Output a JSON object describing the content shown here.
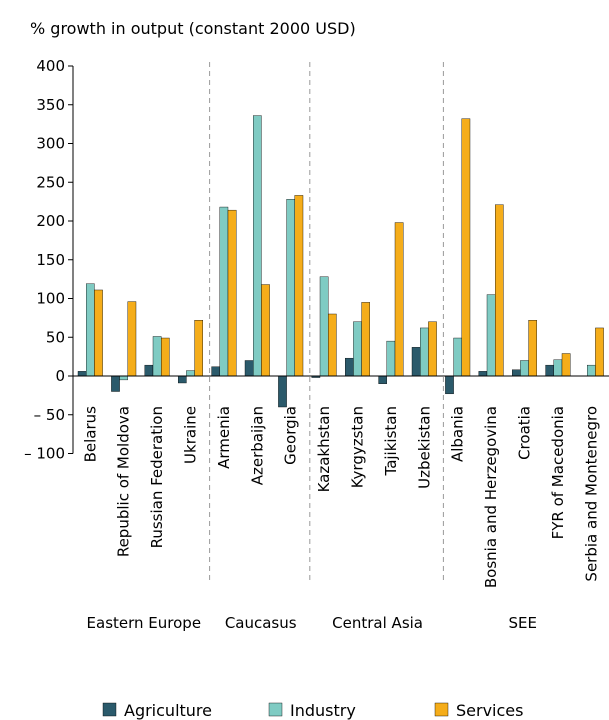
{
  "chart_data": {
    "type": "bar",
    "title": "% growth in output (constant 2000 USD)",
    "xlabel": "",
    "ylabel": "",
    "ylim": [
      -100,
      400
    ],
    "yticks": [
      400,
      350,
      300,
      250,
      200,
      150,
      100,
      50,
      0,
      -50,
      -100
    ],
    "ytick_labels": [
      "400",
      "350",
      "300",
      "250",
      "200",
      "150",
      "100",
      "50",
      "0",
      "– 50",
      "– 100"
    ],
    "grid": false,
    "legend_position": "bottom",
    "categories": [
      "Belarus",
      "Republic of Moldova",
      "Russian Federation",
      "Ukraine",
      "Armenia",
      "Azerbaijan",
      "Georgia",
      "Kazakhstan",
      "Kyrgyzstan",
      "Tajikistan",
      "Uzbekistan",
      "Albania",
      "Bosnia and Herzegovina",
      "Croatia",
      "FYR of Macedonia",
      "Serbia and Montenegro"
    ],
    "groups": [
      {
        "name": "Eastern Europe",
        "start": 0,
        "end": 3
      },
      {
        "name": "Caucasus",
        "start": 4,
        "end": 6
      },
      {
        "name": "Central Asia",
        "start": 7,
        "end": 10
      },
      {
        "name": "SEE",
        "start": 11,
        "end": 15
      }
    ],
    "series": [
      {
        "name": "Agriculture",
        "color": "#2b5a6b",
        "values": [
          6,
          -20,
          14,
          -9,
          12,
          20,
          -40,
          -2,
          23,
          -10,
          37,
          -23,
          6,
          8,
          14,
          0
        ]
      },
      {
        "name": "Industry",
        "color": "#7fcbc3",
        "values": [
          119,
          -5,
          51,
          7,
          218,
          336,
          228,
          128,
          70,
          45,
          62,
          49,
          105,
          20,
          21,
          14
        ]
      },
      {
        "name": "Services",
        "color": "#f5ad1a",
        "values": [
          111,
          96,
          49,
          72,
          214,
          118,
          233,
          80,
          95,
          198,
          70,
          332,
          221,
          72,
          29,
          62
        ]
      }
    ]
  }
}
